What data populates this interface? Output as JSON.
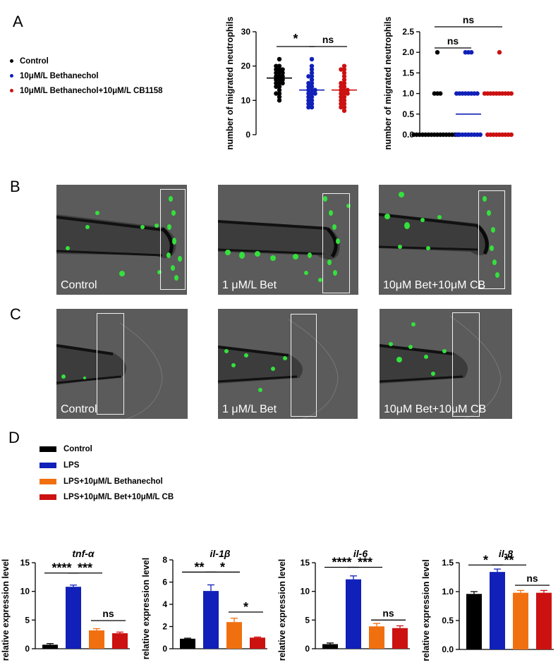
{
  "panels": {
    "a": "A",
    "b": "B",
    "c": "C",
    "d": "D"
  },
  "legend_a": [
    {
      "label": "Control",
      "color": "#000000"
    },
    {
      "label": "10μM/L Bethanechol",
      "color": "#1020b8"
    },
    {
      "label": "10μM/L Bethanechol+10μM/L CB1158",
      "color": "#cc1111"
    }
  ],
  "legend_d": [
    {
      "label": "Control",
      "color": "#000000"
    },
    {
      "label": "LPS",
      "color": "#1020b8"
    },
    {
      "label": "LPS+10μM/L Bethanechol",
      "color": "#f07010"
    },
    {
      "label": "LPS+10μM/L Bet+10μM/L CB",
      "color": "#cc1111"
    }
  ],
  "images_b": [
    {
      "caption": "Control"
    },
    {
      "caption": "1 μM/L Bet"
    },
    {
      "caption": "10μM Bet+10μM CB"
    }
  ],
  "images_c": [
    {
      "caption": "Control"
    },
    {
      "caption": "1 μM/L Bet"
    },
    {
      "caption": "10μM Bet+10μM CB"
    }
  ],
  "chart_data": [
    {
      "type": "scatter",
      "title": "",
      "ylabel": "number of migrated neutrophils",
      "ylim": [
        0,
        30
      ],
      "yticks": [
        0,
        10,
        20,
        30
      ],
      "groups": [
        {
          "name": "Control",
          "color": "#000000",
          "mean": 16.5,
          "values": [
            22,
            20,
            20,
            19,
            19,
            19,
            18,
            18,
            18,
            17,
            17,
            17,
            16,
            16,
            16,
            15,
            15,
            15,
            14,
            14,
            13,
            12,
            12,
            11,
            10
          ]
        },
        {
          "name": "10μM/L Bethanechol",
          "color": "#1020b8",
          "mean": 13,
          "values": [
            22,
            20,
            19,
            18,
            17,
            17,
            16,
            15,
            15,
            14,
            14,
            13,
            13,
            13,
            12,
            12,
            12,
            11,
            11,
            10,
            10,
            9,
            9,
            8,
            8
          ]
        },
        {
          "name": "10μM/L Bethanechol+10μM/L CB1158",
          "color": "#cc1111",
          "mean": 13,
          "values": [
            20,
            19,
            19,
            18,
            17,
            16,
            15,
            15,
            14,
            14,
            13,
            13,
            13,
            12,
            12,
            12,
            11,
            11,
            10,
            10,
            9,
            9,
            8,
            8,
            7
          ]
        }
      ],
      "significance": [
        {
          "from": 0,
          "to": 1,
          "label": "*"
        },
        {
          "from": 1,
          "to": 2,
          "label": "ns"
        }
      ]
    },
    {
      "type": "scatter",
      "title": "",
      "ylabel": "number of migrated neutrophils",
      "ylim": [
        0,
        2.5
      ],
      "yticks": [
        "0.0",
        "0.5",
        "1.0",
        "1.5",
        "2.0",
        "2.5"
      ],
      "groups": [
        {
          "name": "Control",
          "color": "#000000",
          "mean": 0,
          "values": [
            2,
            1,
            1,
            1,
            0,
            0,
            0,
            0,
            0,
            0,
            0,
            0,
            0,
            0,
            0,
            0,
            0,
            0,
            0,
            0
          ]
        },
        {
          "name": "10μM/L Bethanechol",
          "color": "#1020b8",
          "mean": 0.5,
          "values": [
            2,
            2,
            2,
            1,
            1,
            1,
            1,
            1,
            1,
            1,
            1,
            0,
            0,
            0,
            0,
            0,
            0,
            0,
            0,
            0
          ]
        },
        {
          "name": "10μM/L Bethanechol+10μM/L CB1158",
          "color": "#cc1111",
          "mean": 0,
          "values": [
            2,
            1,
            1,
            1,
            1,
            1,
            1,
            1,
            1,
            1,
            1,
            0,
            0,
            0,
            0,
            0,
            0,
            0,
            0,
            0
          ]
        }
      ],
      "significance": [
        {
          "from": 0,
          "to": 1,
          "label": "ns"
        },
        {
          "from": 0,
          "to": 2,
          "label": "ns"
        }
      ]
    },
    {
      "type": "bar",
      "title": "tnf-α",
      "ylabel": "relative expression level",
      "ylim": [
        0,
        15
      ],
      "yticks": [
        "0",
        "5",
        "10",
        "15"
      ],
      "categories": [
        "Control",
        "LPS",
        "LPS+10μM/L Bethanechol",
        "LPS+10μM/L Bet+10μM/L CB"
      ],
      "values": [
        0.7,
        10.8,
        3.2,
        2.7
      ],
      "errors": [
        0.2,
        0.3,
        0.3,
        0.2
      ],
      "significance": [
        {
          "from": 0,
          "to": 1,
          "label": "****",
          "y": 13.2
        },
        {
          "from": 1,
          "to": 2,
          "label": "***",
          "y": 13.2
        },
        {
          "from": 2,
          "to": 3,
          "label": "ns",
          "y": 4.9
        }
      ]
    },
    {
      "type": "bar",
      "title": "il-1β",
      "ylabel": "relative expression level",
      "ylim": [
        0,
        8
      ],
      "yticks": [
        "0",
        "2",
        "4",
        "6",
        "8"
      ],
      "categories": [
        "Control",
        "LPS",
        "LPS+10μM/L Bethanechol",
        "LPS+10μM/L Bet+10μM/L CB"
      ],
      "values": [
        0.9,
        5.2,
        2.4,
        1.0
      ],
      "errors": [
        0.05,
        0.55,
        0.35,
        0.05
      ],
      "significance": [
        {
          "from": 0,
          "to": 1,
          "label": "**",
          "y": 6.9
        },
        {
          "from": 1,
          "to": 2,
          "label": "*",
          "y": 6.9
        },
        {
          "from": 2,
          "to": 3,
          "label": "*",
          "y": 3.3
        }
      ]
    },
    {
      "type": "bar",
      "title": "il-6",
      "ylabel": "relative expression level",
      "ylim": [
        0,
        15
      ],
      "yticks": [
        "0",
        "5",
        "10",
        "15"
      ],
      "categories": [
        "Control",
        "LPS",
        "LPS+10μM/L Bethanechol",
        "LPS+10μM/L Bet+10μM/L CB"
      ],
      "values": [
        0.8,
        12.1,
        3.9,
        3.6
      ],
      "errors": [
        0.2,
        0.6,
        0.5,
        0.4
      ],
      "significance": [
        {
          "from": 0,
          "to": 1,
          "label": "****",
          "y": 14.2
        },
        {
          "from": 1,
          "to": 2,
          "label": "***",
          "y": 14.2
        },
        {
          "from": 2,
          "to": 3,
          "label": "ns",
          "y": 5.0
        }
      ]
    },
    {
      "type": "bar",
      "title": "il-8",
      "ylabel": "relative expression level",
      "ylim": [
        0,
        1.5
      ],
      "yticks": [
        "0.0",
        "0.5",
        "1.0",
        "1.5"
      ],
      "categories": [
        "Control",
        "LPS",
        "LPS+10μM/L Bethanechol",
        "LPS+10μM/L Bet+10μM/L CB"
      ],
      "values": [
        0.96,
        1.34,
        0.98,
        0.98
      ],
      "errors": [
        0.04,
        0.05,
        0.04,
        0.04
      ],
      "significance": [
        {
          "from": 0,
          "to": 1,
          "label": "*",
          "y": 1.46
        },
        {
          "from": 1,
          "to": 2,
          "label": "**",
          "y": 1.46
        },
        {
          "from": 2,
          "to": 3,
          "label": "ns",
          "y": 1.11
        }
      ]
    }
  ]
}
